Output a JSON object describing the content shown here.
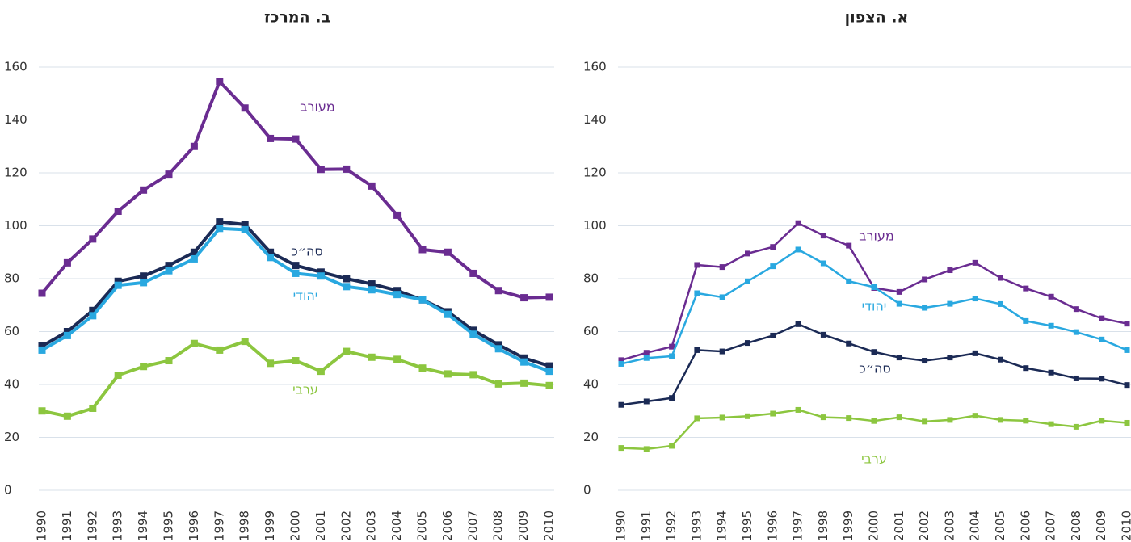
{
  "chart_data": [
    {
      "type": "line",
      "title": "ב. המרכז",
      "categories": [
        "1990",
        "1991",
        "1992",
        "1993",
        "1994",
        "1995",
        "1996",
        "1997",
        "1998",
        "1999",
        "2000",
        "2001",
        "2002",
        "2003",
        "2004",
        "2005",
        "2006",
        "2007",
        "2008",
        "2009",
        "2010"
      ],
      "ylim": [
        0,
        160
      ],
      "yticks": [
        0,
        20,
        40,
        60,
        80,
        100,
        120,
        140,
        160
      ],
      "grid": true,
      "series": [
        {
          "name": "מעורב",
          "color": "#6a2c91",
          "values": [
            74.5,
            86,
            95,
            105.5,
            113.5,
            119.5,
            130,
            154.5,
            144.5,
            133,
            132.8,
            121.3,
            121.4,
            115,
            104,
            91,
            90,
            82,
            75.5,
            72.8,
            73
          ]
        },
        {
          "name": "סה״כ",
          "color": "#1b2a55",
          "values": [
            54.5,
            60,
            68,
            79,
            81,
            85,
            90,
            101.5,
            100.5,
            90,
            85,
            82.5,
            80,
            78,
            75.5,
            72,
            67.5,
            60.5,
            55,
            50,
            47
          ]
        },
        {
          "name": "יהודי",
          "color": "#29a8e0",
          "values": [
            53,
            58.5,
            66,
            77.5,
            78.5,
            83,
            87.5,
            99,
            98.5,
            88,
            82,
            81,
            77,
            75.8,
            74,
            72,
            66.5,
            59,
            53.5,
            48.5,
            45
          ]
        },
        {
          "name": "ערבי",
          "color": "#8cc63f",
          "values": [
            30,
            28,
            31,
            43.5,
            46.8,
            49,
            55.5,
            53,
            56.3,
            48,
            49,
            45,
            52.5,
            50.3,
            49.5,
            46.2,
            44,
            43.7,
            40.2,
            40.5,
            39.6
          ]
        }
      ]
    },
    {
      "type": "line",
      "title": "א. הצפון",
      "categories": [
        "1990",
        "1991",
        "1992",
        "1993",
        "1994",
        "1995",
        "1996",
        "1997",
        "1998",
        "1999",
        "2000",
        "2001",
        "2002",
        "2003",
        "2004",
        "2005",
        "2006",
        "2007",
        "2008",
        "2009",
        "2010"
      ],
      "ylim": [
        0,
        160
      ],
      "yticks": [
        0,
        20,
        40,
        60,
        80,
        100,
        120,
        140,
        160
      ],
      "grid": true,
      "series": [
        {
          "name": "מעורב",
          "color": "#6a2c91",
          "values": [
            49.2,
            52,
            54.3,
            85.2,
            84.4,
            89.5,
            92,
            101,
            96.3,
            92.5,
            76.5,
            75,
            79.7,
            83.2,
            86,
            80.3,
            76.3,
            73.2,
            68.5,
            65,
            63
          ]
        },
        {
          "name": "יהודי",
          "color": "#29a8e0",
          "values": [
            47.8,
            50,
            50.7,
            74.5,
            73,
            79,
            84.7,
            91,
            85.8,
            79,
            76.8,
            70.5,
            69,
            70.5,
            72.5,
            70.4,
            64,
            62.2,
            59.8,
            57,
            53
          ]
        },
        {
          "name": "סה״כ",
          "color": "#1b2a55",
          "values": [
            32.3,
            33.6,
            34.9,
            53,
            52.5,
            55.7,
            58.5,
            62.8,
            58.8,
            55.5,
            52.3,
            50.2,
            49,
            50.2,
            51.8,
            49.4,
            46.2,
            44.5,
            42.3,
            42.2,
            39.8
          ]
        },
        {
          "name": "ערבי",
          "color": "#8cc63f",
          "values": [
            16,
            15.6,
            16.8,
            27.2,
            27.5,
            28,
            29,
            30.4,
            27.6,
            27.3,
            26.2,
            27.6,
            26,
            26.6,
            28.2,
            26.6,
            26.3,
            25,
            24,
            26.3,
            25.5
          ]
        }
      ]
    }
  ]
}
